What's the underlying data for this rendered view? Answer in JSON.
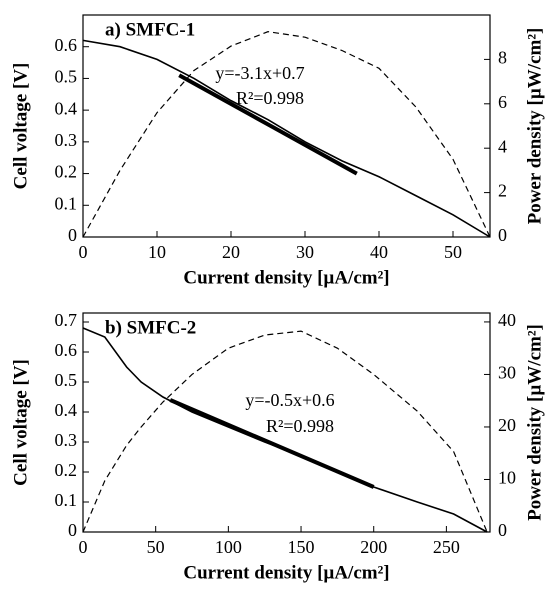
{
  "chart_data": [
    {
      "type": "line",
      "title": "a) SMFC-1",
      "xlabel": "Current density [µA/cm²]",
      "ylabel": "Cell voltage [V]",
      "y2label": "Power density [µW/cm²]",
      "xlim": [
        0,
        55
      ],
      "xticks": [
        0,
        10,
        20,
        30,
        40,
        50
      ],
      "ylim": [
        0,
        0.7
      ],
      "yticks": [
        0,
        0.1,
        0.2,
        0.3,
        0.4,
        0.5,
        0.6
      ],
      "y2lim": [
        0,
        10
      ],
      "y2ticks": [
        0,
        2,
        4,
        6,
        8
      ],
      "annotations": [
        "y=-3.1x+0.7",
        "R²=0.998"
      ],
      "series": [
        {
          "color": "#000000",
          "dash": "solid",
          "width": 1.6,
          "x": [
            0,
            5,
            10,
            15,
            20,
            25,
            30,
            35,
            40,
            45,
            50,
            55
          ],
          "values": [
            0.62,
            0.6,
            0.56,
            0.5,
            0.43,
            0.37,
            0.3,
            0.24,
            0.19,
            0.13,
            0.07,
            0
          ]
        },
        {
          "color": "#000000",
          "dash": "solid",
          "width": 4,
          "x": [
            13,
            37
          ],
          "values": [
            0.51,
            0.2
          ]
        },
        {
          "color": "#000000",
          "dash": "dashed",
          "width": 1.2,
          "axis": "y2",
          "x": [
            0,
            5,
            10,
            15,
            20,
            25,
            30,
            35,
            40,
            45,
            50,
            55
          ],
          "values": [
            0,
            3,
            5.6,
            7.5,
            8.6,
            9.25,
            9,
            8.4,
            7.6,
            5.85,
            3.5,
            0
          ]
        }
      ]
    },
    {
      "type": "line",
      "title": "b) SMFC-2",
      "xlabel": "Current density [µA/cm²]",
      "ylabel": "Cell voltage [V]",
      "y2label": "Power density [µW/cm²]",
      "xlim": [
        0,
        280
      ],
      "xticks": [
        0,
        50,
        100,
        150,
        200,
        250
      ],
      "ylim": [
        0,
        0.73
      ],
      "yticks": [
        0,
        0.1,
        0.2,
        0.3,
        0.4,
        0.5,
        0.6,
        0.7
      ],
      "y2lim": [
        0,
        41.7
      ],
      "y2ticks": [
        0,
        10,
        20,
        30,
        40
      ],
      "annotations": [
        "y=-0.5x+0.6",
        "R²=0.998"
      ],
      "series": [
        {
          "color": "#000000",
          "dash": "solid",
          "width": 1.6,
          "x": [
            0,
            15,
            30,
            40,
            55,
            75,
            100,
            125,
            150,
            175,
            200,
            230,
            255,
            278
          ],
          "values": [
            0.68,
            0.65,
            0.55,
            0.5,
            0.45,
            0.4,
            0.35,
            0.3,
            0.255,
            0.2,
            0.15,
            0.1,
            0.06,
            0
          ]
        },
        {
          "color": "#000000",
          "dash": "solid",
          "width": 4,
          "x": [
            60,
            200
          ],
          "values": [
            0.44,
            0.15
          ]
        },
        {
          "color": "#000000",
          "dash": "dashed",
          "width": 1.2,
          "axis": "y2",
          "x": [
            0,
            15,
            30,
            40,
            55,
            75,
            100,
            125,
            150,
            175,
            200,
            230,
            255,
            278
          ],
          "values": [
            0,
            9.75,
            16.5,
            20,
            24.75,
            30,
            35,
            37.5,
            38.25,
            35,
            30,
            23,
            15.3,
            0
          ]
        }
      ]
    }
  ]
}
